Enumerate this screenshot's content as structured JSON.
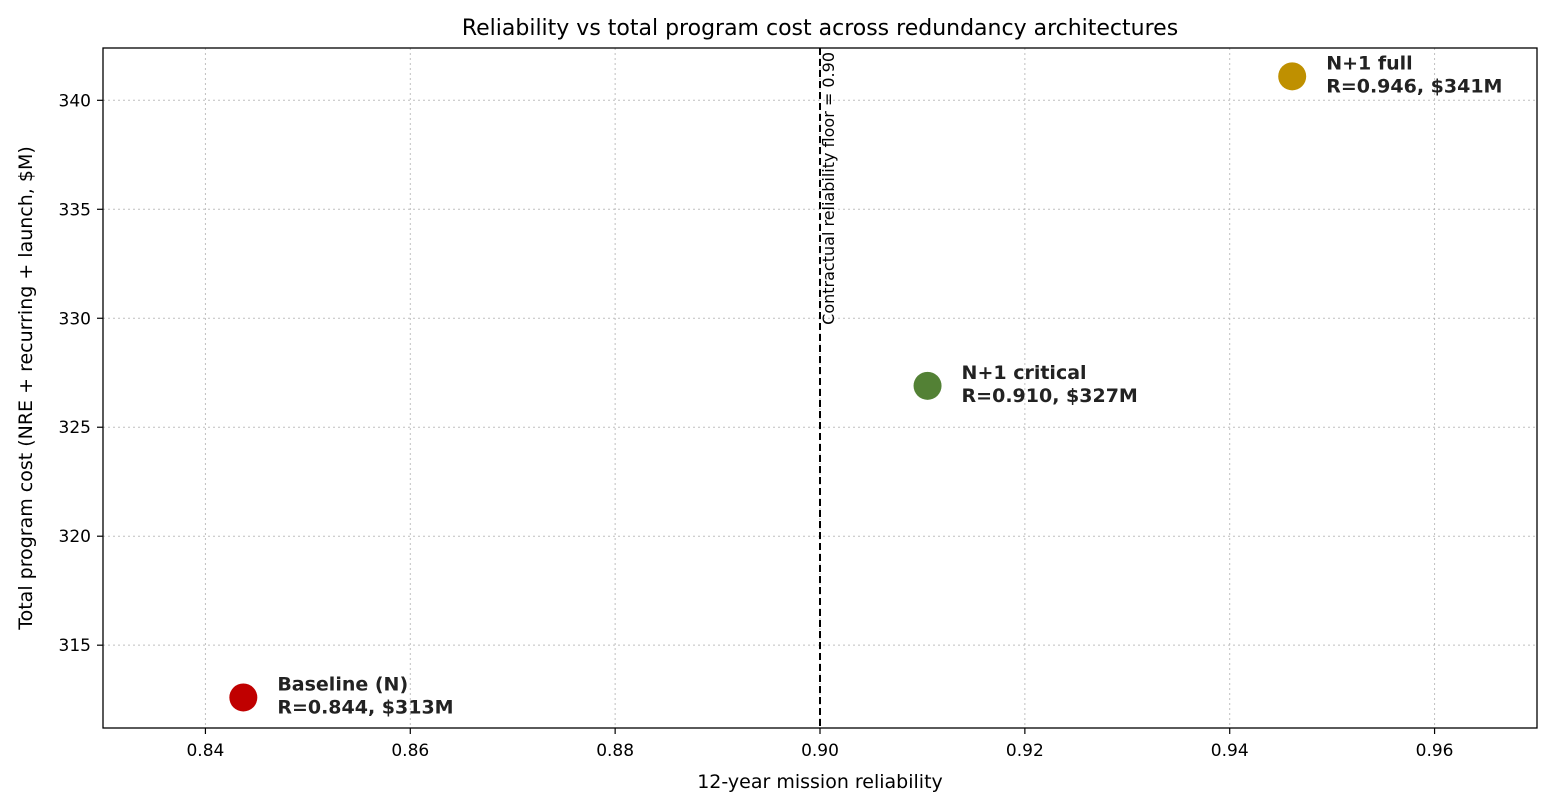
{
  "chart_data": {
    "type": "scatter",
    "title": "Reliability vs total program cost across redundancy architectures",
    "xlabel": "12-year mission reliability",
    "ylabel": "Total program cost  (NRE + recurring + launch, $M)",
    "xlim": [
      0.83,
      0.97
    ],
    "ylim": [
      311.2,
      342.4
    ],
    "xticks": [
      0.84,
      0.86,
      0.88,
      0.9,
      0.92,
      0.94,
      0.96
    ],
    "xtick_labels": [
      "0.84",
      "0.86",
      "0.88",
      "0.90",
      "0.92",
      "0.94",
      "0.96"
    ],
    "yticks": [
      315,
      320,
      325,
      330,
      335,
      340
    ],
    "ytick_labels": [
      "315",
      "320",
      "325",
      "330",
      "335",
      "340"
    ],
    "grid": true,
    "points": [
      {
        "name": "Baseline (N)",
        "detail": "R=0.844, $313M",
        "x": 0.8437,
        "y": 312.6,
        "color": "#c00000"
      },
      {
        "name": "N+1 critical",
        "detail": "R=0.910, $327M",
        "x": 0.9105,
        "y": 326.9,
        "color": "#538135"
      },
      {
        "name": "N+1 full",
        "detail": "R=0.946, $341M",
        "x": 0.9461,
        "y": 341.1,
        "color": "#bf9000"
      }
    ],
    "reference_line": {
      "x": 0.9,
      "label": "Contractual reliability floor = 0.90",
      "style": "dashed"
    }
  }
}
